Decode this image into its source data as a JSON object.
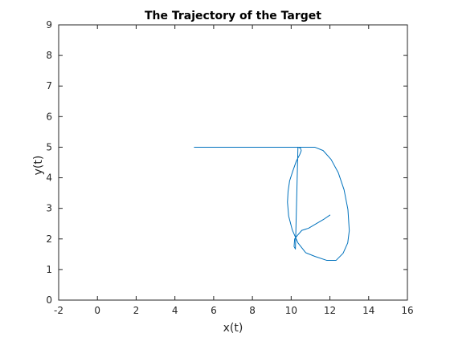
{
  "chart_data": {
    "type": "line",
    "title": "The Trajectory of the Target",
    "xlabel": "x(t)",
    "ylabel": "y(t)",
    "xlim": [
      -2,
      16
    ],
    "ylim": [
      0,
      9
    ],
    "xticks": [
      -2,
      0,
      2,
      4,
      6,
      8,
      10,
      12,
      14,
      16
    ],
    "yticks": [
      0,
      1,
      2,
      3,
      4,
      5,
      6,
      7,
      8,
      9
    ],
    "xtick_labels": [
      "-2",
      "0",
      "2",
      "4",
      "6",
      "8",
      "10",
      "12",
      "14",
      "16"
    ],
    "ytick_labels": [
      "0",
      "1",
      "2",
      "3",
      "4",
      "5",
      "6",
      "7",
      "8",
      "9"
    ],
    "grid": false,
    "series": [
      {
        "color": "#0072BD",
        "x": [
          5.0,
          6.0,
          7.0,
          8.0,
          9.0,
          10.0,
          11.0,
          11.22,
          11.65,
          12.06,
          12.43,
          12.73,
          12.93,
          13.0,
          12.92,
          12.68,
          12.32,
          11.83,
          11.22,
          10.75,
          10.35,
          10.06,
          9.87,
          9.81,
          9.84,
          9.92,
          10.09,
          10.27,
          10.45,
          10.52,
          10.48,
          10.35,
          10.22,
          10.15,
          10.18,
          10.33,
          10.55,
          10.9,
          11.3,
          11.7,
          12.0
        ],
        "y": [
          5.0,
          5.0,
          5.0,
          5.0,
          5.0,
          5.0,
          5.0,
          5.0,
          4.89,
          4.6,
          4.17,
          3.61,
          2.96,
          2.27,
          1.87,
          1.53,
          1.3,
          1.3,
          1.43,
          1.55,
          1.87,
          2.29,
          2.75,
          3.2,
          3.55,
          3.9,
          4.23,
          4.55,
          4.77,
          4.89,
          4.97,
          5.0,
          1.67,
          1.75,
          2.0,
          2.12,
          2.28,
          2.35,
          2.5,
          2.65,
          2.78
        ]
      }
    ]
  }
}
